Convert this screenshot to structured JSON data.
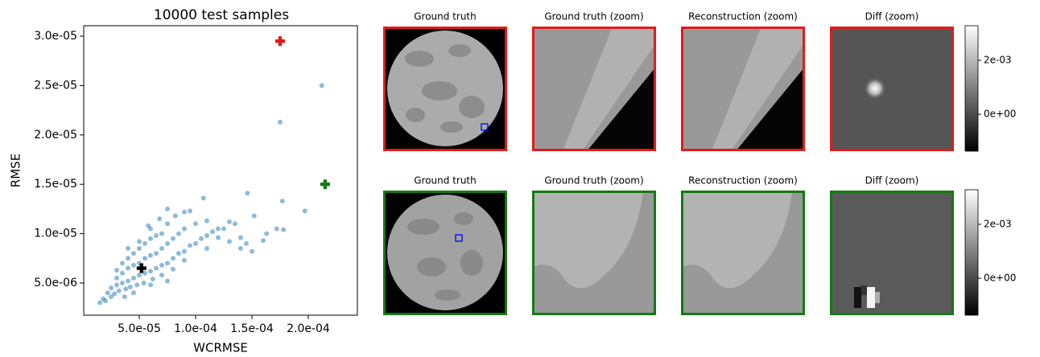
{
  "chart_data": {
    "type": "scatter",
    "title": "10000 test  samples",
    "x_label": "WCRMSE",
    "y_label": "RMSE",
    "xlim": [
      7e-07,
      0.0002436
    ],
    "ylim": [
      1.74e-06,
      3.106e-05
    ],
    "xticks": [
      {
        "value": 5e-05,
        "label": "5.0e-05"
      },
      {
        "value": 0.0001,
        "label": "1.0e-04"
      },
      {
        "value": 0.00015,
        "label": "1.5e-04"
      },
      {
        "value": 0.0002,
        "label": "2.0e-04"
      }
    ],
    "yticks": [
      {
        "value": 5e-06,
        "label": "5.0e-06"
      },
      {
        "value": 1e-05,
        "label": "1.0e-05"
      },
      {
        "value": 1.5e-05,
        "label": "1.5e-05"
      },
      {
        "value": 2e-05,
        "label": "2.0e-05"
      },
      {
        "value": 2.5e-05,
        "label": "2.5e-05"
      },
      {
        "value": 3e-05,
        "label": "3.0e-05"
      }
    ],
    "series": [
      {
        "color": "#1f77b4",
        "marker": "circle",
        "x": [
          2.5e-05,
          3e-05,
          3e-05,
          3.5e-05,
          3.5e-05,
          4e-05,
          4e-05,
          4e-05,
          4.5e-05,
          4.5e-05,
          4.5e-05,
          5e-05,
          5e-05,
          5e-05,
          5e-05,
          5.5e-05,
          5.5e-05,
          5.5e-05,
          6e-05,
          6e-05,
          6e-05,
          6e-05,
          6.5e-05,
          6.5e-05,
          6.5e-05,
          7e-05,
          7e-05,
          7e-05,
          7.5e-05,
          7.5e-05,
          7.5e-05,
          8e-05,
          8e-05,
          8.5e-05,
          8.5e-05,
          9e-05,
          9e-05,
          9.5e-05,
          0.0001,
          0.0001,
          0.000105,
          0.00011,
          0.000115,
          0.00012,
          0.000125,
          3.2e-05,
          3.8e-05,
          4.2e-05,
          4.8e-05,
          5.4e-05,
          6.2e-05,
          7e-05,
          8e-05,
          2.2e-05,
          2.8e-05,
          3.5e-05,
          4e-05,
          3e-05,
          5.8e-05,
          6.8e-05,
          8.2e-05,
          9.5e-05,
          0.00013,
          0.00014,
          0.00011,
          9e-05,
          3.7e-05,
          4.5e-05,
          6e-05,
          7.5e-05,
          0.000212,
          0.000175,
          0.000177,
          0.000197,
          0.000146,
          0.000107,
          0.000152,
          0.000172,
          0.000178,
          0.000163,
          0.00016,
          0.000135,
          0.00012,
          7.5e-05,
          9e-05,
          0.00013,
          0.00015,
          0.00014,
          0.000145,
          0.00011,
          1.5e-05,
          2e-05,
          2.5e-05,
          1.8e-05
        ],
        "values": [
          4.5e-06,
          4.8e-06,
          5.5e-06,
          5e-06,
          6e-06,
          5.2e-06,
          6.5e-06,
          7.5e-06,
          5.5e-06,
          6.8e-06,
          8e-06,
          5.8e-06,
          7e-06,
          8.5e-06,
          9.2e-06,
          6e-06,
          7.5e-06,
          9e-06,
          6.2e-06,
          7.8e-06,
          9.5e-06,
          1.05e-05,
          6.5e-06,
          8e-06,
          9.8e-06,
          6.8e-06,
          8.5e-06,
          1e-05,
          7e-06,
          9e-06,
          1.1e-05,
          7.5e-06,
          9.5e-06,
          8e-06,
          1e-05,
          8.2e-06,
          1.05e-05,
          8.8e-06,
          9e-06,
          1.1e-05,
          9.5e-06,
          9.8e-06,
          1.02e-05,
          9.6e-06,
          1.05e-05,
          4.2e-06,
          4.4e-06,
          4.6e-06,
          4.8e-06,
          5e-06,
          5.4e-06,
          5.8e-06,
          6.4e-06,
          4e-06,
          3.9e-06,
          7e-06,
          8.5e-06,
          6.3e-06,
          1.08e-05,
          1.15e-05,
          1.18e-05,
          1.23e-05,
          9.2e-06,
          9.6e-06,
          8.5e-06,
          7.3e-06,
          3.6e-06,
          4e-06,
          4.8e-06,
          5.2e-06,
          2.5e-05,
          2.13e-05,
          1.33e-05,
          1.23e-05,
          1.41e-05,
          1.36e-05,
          1.18e-05,
          1.05e-05,
          1.04e-05,
          1e-05,
          9.3e-06,
          1.1e-05,
          1.05e-05,
          1.25e-05,
          1.22e-05,
          1.12e-05,
          8.2e-06,
          8.5e-06,
          9e-06,
          1.13e-05,
          3e-06,
          3.2e-06,
          3.6e-06,
          3.4e-06
        ]
      },
      {
        "color": "#e31a1c",
        "marker": "plus",
        "x": [
          0.000175
        ],
        "values": [
          2.95e-05
        ]
      },
      {
        "color": "#137a13",
        "marker": "plus",
        "x": [
          0.000215
        ],
        "values": [
          1.5e-05
        ]
      },
      {
        "color": "#000000",
        "marker": "plus",
        "x": [
          5.2e-05
        ],
        "values": [
          6.5e-06
        ]
      }
    ]
  },
  "panels": {
    "rows": [
      {
        "border": "#e31a1c",
        "titles": [
          "Ground truth",
          "Ground truth (zoom)",
          "Reconstruction (zoom)",
          "Diff (zoom)"
        ]
      },
      {
        "border": "#137a13",
        "titles": [
          "Ground truth",
          "Ground truth (zoom)",
          "Reconstruction (zoom)",
          "Diff (zoom)"
        ]
      }
    ],
    "colorbar": {
      "lim": [
        -0.00137,
        0.00328
      ],
      "ticks": [
        {
          "value": 0.002,
          "label": "2e-03"
        },
        {
          "value": 0,
          "label": "0e+00"
        }
      ]
    }
  }
}
